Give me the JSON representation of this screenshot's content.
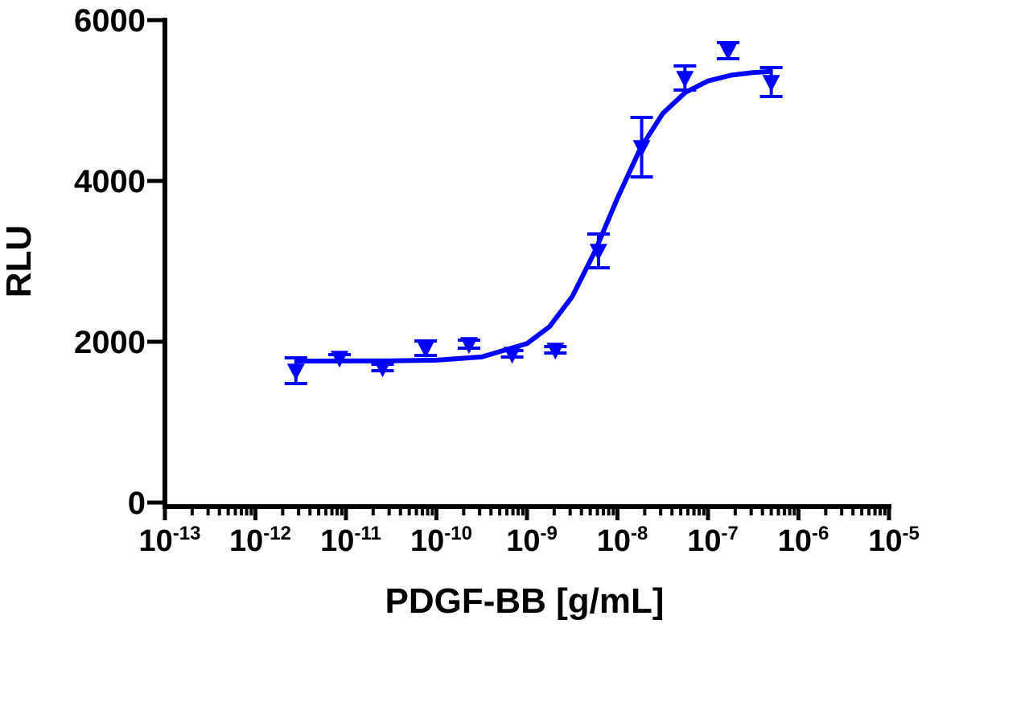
{
  "chart_data": {
    "type": "scatter",
    "x_label": "PDGF-BB [g/mL]",
    "y_label": "RLU",
    "x_scale": "log",
    "xlim": [
      1e-13,
      1e-05
    ],
    "xticks": [
      {
        "value": 1e-13,
        "label": "10",
        "exponent": "-13"
      },
      {
        "value": 1e-12,
        "label": "10",
        "exponent": "-12"
      },
      {
        "value": 1e-11,
        "label": "10",
        "exponent": "-11"
      },
      {
        "value": 1e-10,
        "label": "10",
        "exponent": "-10"
      },
      {
        "value": 1e-09,
        "label": "10",
        "exponent": "-9"
      },
      {
        "value": 1e-08,
        "label": "10",
        "exponent": "-8"
      },
      {
        "value": 1e-07,
        "label": "10",
        "exponent": "-7"
      },
      {
        "value": 1e-06,
        "label": "10",
        "exponent": "-6"
      },
      {
        "value": 1e-05,
        "label": "10",
        "exponent": "-5"
      }
    ],
    "minor_ticks": true,
    "ylim": [
      0,
      6000
    ],
    "yticks": [
      0,
      2000,
      4000,
      6000
    ],
    "grid": false,
    "series": [
      {
        "mode": "markers",
        "marker": "triangle-down",
        "color": "#0000ff",
        "x": [
          2.8e-12,
          8.5e-12,
          2.54e-11,
          7.6e-11,
          2.29e-10,
          6.86e-10,
          2.06e-09,
          6.17e-09,
          1.85e-08,
          5.56e-08,
          1.67e-07,
          5e-07
        ],
        "values": [
          1640,
          1800,
          1680,
          1920,
          1970,
          1850,
          1900,
          3130,
          4420,
          5280,
          5620,
          5230
        ],
        "errors": [
          160,
          40,
          40,
          90,
          50,
          40,
          40,
          210,
          370,
          150,
          100,
          180
        ]
      },
      {
        "mode": "line",
        "color": "#0000ff",
        "x": [
          2.75e-12,
          1e-11,
          3.16e-11,
          1e-10,
          3.16e-10,
          1e-09,
          1.78e-09,
          3.16e-09,
          5.62e-09,
          1e-08,
          1.78e-08,
          3.16e-08,
          5.62e-08,
          1e-07,
          1.78e-07,
          3.16e-07,
          5e-07
        ],
        "values": [
          1760,
          1761,
          1763,
          1771,
          1811,
          1977,
          2189,
          2561,
          3121,
          3786,
          4398,
          4838,
          5101,
          5243,
          5314,
          5348,
          5363
        ]
      }
    ]
  }
}
